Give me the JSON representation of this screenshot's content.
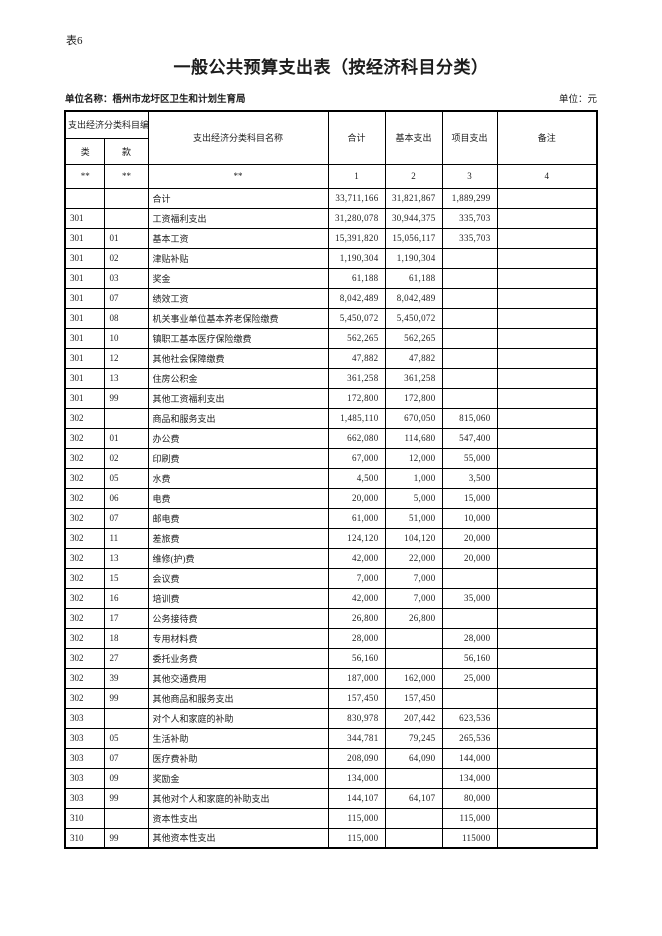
{
  "page": {
    "sheet_label": "表6",
    "title": "一般公共预算支出表（按经济科目分类）",
    "unit_name": "单位名称：梧州市龙圩区卫生和计划生育局",
    "unit_label": "单位：元"
  },
  "colors": {
    "background": "#ffffff",
    "text": "#1c1c1c",
    "border": "#000000"
  },
  "table": {
    "header": {
      "code_group": "支出经济分类科目编码",
      "code_class": "类",
      "code_item": "款",
      "subject_name": "支出经济分类科目名称",
      "total": "合计",
      "basic": "基本支出",
      "project": "项目支出",
      "note": "备注",
      "mark_class": "**",
      "mark_item": "**",
      "mark_name": "**",
      "index_total": "1",
      "index_basic": "2",
      "index_project": "3",
      "index_note": "4"
    },
    "columns": [
      "类",
      "款",
      "支出经济分类科目名称",
      "合计",
      "基本支出",
      "项目支出",
      "备注"
    ],
    "rows": [
      [
        "",
        "",
        "合计",
        "33,711,166",
        "31,821,867",
        "1,889,299",
        ""
      ],
      [
        "301",
        "",
        "工资福利支出",
        "31,280,078",
        "30,944,375",
        "335,703",
        ""
      ],
      [
        "301",
        "01",
        "基本工资",
        "15,391,820",
        "15,056,117",
        "335,703",
        ""
      ],
      [
        "301",
        "02",
        "津贴补贴",
        "1,190,304",
        "1,190,304",
        "",
        ""
      ],
      [
        "301",
        "03",
        "奖金",
        "61,188",
        "61,188",
        "",
        ""
      ],
      [
        "301",
        "07",
        "绩效工资",
        "8,042,489",
        "8,042,489",
        "",
        ""
      ],
      [
        "301",
        "08",
        "机关事业单位基本养老保险缴费",
        "5,450,072",
        "5,450,072",
        "",
        ""
      ],
      [
        "301",
        "10",
        "镇职工基本医疗保险缴费",
        "562,265",
        "562,265",
        "",
        ""
      ],
      [
        "301",
        "12",
        "其他社会保障缴费",
        "47,882",
        "47,882",
        "",
        ""
      ],
      [
        "301",
        "13",
        "住房公积金",
        "361,258",
        "361,258",
        "",
        ""
      ],
      [
        "301",
        "99",
        "其他工资福利支出",
        "172,800",
        "172,800",
        "",
        ""
      ],
      [
        "302",
        "",
        "商品和服务支出",
        "1,485,110",
        "670,050",
        "815,060",
        ""
      ],
      [
        "302",
        "01",
        "办公费",
        "662,080",
        "114,680",
        "547,400",
        ""
      ],
      [
        "302",
        "02",
        "印刷费",
        "67,000",
        "12,000",
        "55,000",
        ""
      ],
      [
        "302",
        "05",
        "水费",
        "4,500",
        "1,000",
        "3,500",
        ""
      ],
      [
        "302",
        "06",
        "电费",
        "20,000",
        "5,000",
        "15,000",
        ""
      ],
      [
        "302",
        "07",
        "邮电费",
        "61,000",
        "51,000",
        "10,000",
        ""
      ],
      [
        "302",
        "11",
        "差旅费",
        "124,120",
        "104,120",
        "20,000",
        ""
      ],
      [
        "302",
        "13",
        "维修(护)费",
        "42,000",
        "22,000",
        "20,000",
        ""
      ],
      [
        "302",
        "15",
        "会议费",
        "7,000",
        "7,000",
        "",
        ""
      ],
      [
        "302",
        "16",
        "培训费",
        "42,000",
        "7,000",
        "35,000",
        ""
      ],
      [
        "302",
        "17",
        "公务接待费",
        "26,800",
        "26,800",
        "",
        ""
      ],
      [
        "302",
        "18",
        "专用材料费",
        "28,000",
        "",
        "28,000",
        ""
      ],
      [
        "302",
        "27",
        "委托业务费",
        "56,160",
        "",
        "56,160",
        ""
      ],
      [
        "302",
        "39",
        "其他交通费用",
        "187,000",
        "162,000",
        "25,000",
        ""
      ],
      [
        "302",
        "99",
        "其他商品和服务支出",
        "157,450",
        "157,450",
        "",
        ""
      ],
      [
        "303",
        "",
        "对个人和家庭的补助",
        "830,978",
        "207,442",
        "623,536",
        ""
      ],
      [
        "303",
        "05",
        "生活补助",
        "344,781",
        "79,245",
        "265,536",
        ""
      ],
      [
        "303",
        "07",
        "医疗费补助",
        "208,090",
        "64,090",
        "144,000",
        ""
      ],
      [
        "303",
        "09",
        "奖励金",
        "134,000",
        "",
        "134,000",
        ""
      ],
      [
        "303",
        "99",
        "其他对个人和家庭的补助支出",
        "144,107",
        "64,107",
        "80,000",
        ""
      ],
      [
        "310",
        "",
        "资本性支出",
        "115,000",
        "",
        "115,000",
        ""
      ],
      [
        "310",
        "99",
        "其他资本性支出",
        "115,000",
        "",
        "115000",
        ""
      ]
    ]
  }
}
